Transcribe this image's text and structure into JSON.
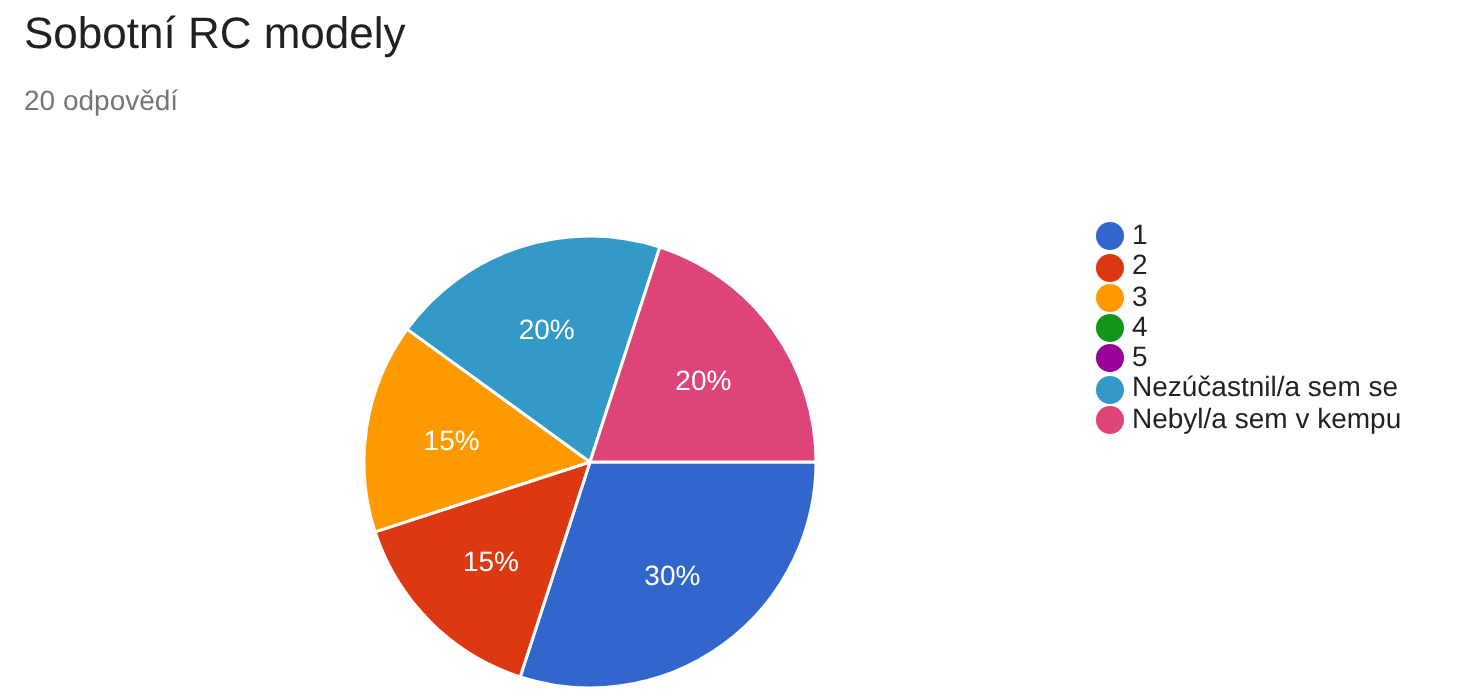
{
  "chart_data": {
    "type": "pie",
    "title": "Sobotní RC modely",
    "subtitle": "20 odpovědí",
    "categories": [
      "1",
      "2",
      "3",
      "4",
      "5",
      "Nezúčastnil/a sem se",
      "Nebyl/a sem v kempu"
    ],
    "values": [
      30,
      15,
      15,
      0,
      0,
      20,
      20
    ],
    "colors": [
      "#3366cc",
      "#dc3912",
      "#ff9900",
      "#109618",
      "#990099",
      "#3399c6",
      "#dd4477"
    ],
    "value_labels": [
      "30%",
      "15%",
      "15%",
      null,
      null,
      "20%",
      "20%"
    ],
    "legend": "right"
  }
}
